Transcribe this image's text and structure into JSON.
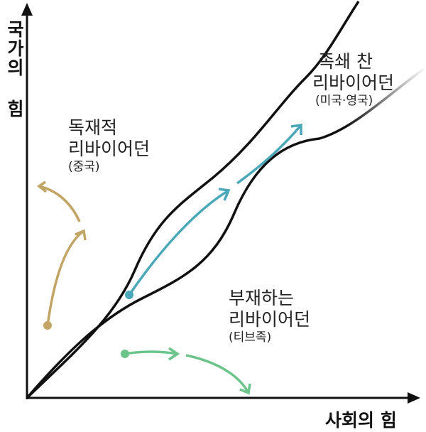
{
  "axes": {
    "y_label": "국가의 힘",
    "x_label": "사회의 힘"
  },
  "regions": [
    {
      "title": "독재적",
      "subtitle": "리바이어던",
      "note": "(중국)"
    },
    {
      "title": "족쇄 찬",
      "subtitle": "리바이어던",
      "note": "(미국·영국)"
    },
    {
      "title": "부재하는",
      "subtitle": "리바이어던",
      "note": "(티브족)"
    }
  ]
}
